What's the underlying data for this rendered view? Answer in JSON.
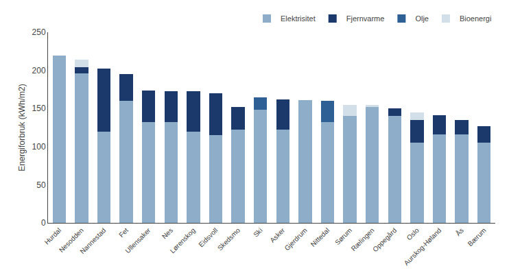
{
  "chart_data": {
    "type": "bar",
    "stacked": true,
    "categories": [
      "Hurdal",
      "Nesodden",
      "Nannestad",
      "Fet",
      "Ullensaker",
      "Nes",
      "Lørenskog",
      "Eidsvoll",
      "Skedsmo",
      "Ski",
      "Asker",
      "Gjerdrum",
      "Nittedal",
      "Sørum",
      "Rælingen",
      "Oppegård",
      "Oslo",
      "Aurskog-Høland",
      "Ås",
      "Bærum"
    ],
    "series": [
      {
        "name": "Elektrisitet",
        "color": "#8eadc8",
        "values": [
          219,
          196,
          120,
          160,
          132,
          132,
          120,
          115,
          122,
          148,
          122,
          161,
          132,
          140,
          152,
          140,
          105,
          116,
          116,
          105
        ]
      },
      {
        "name": "Fjernvarme",
        "color": "#1b3a6b",
        "values": [
          0,
          8,
          82,
          35,
          42,
          41,
          53,
          55,
          30,
          0,
          40,
          0,
          0,
          0,
          0,
          10,
          30,
          25,
          19,
          22
        ]
      },
      {
        "name": "Olje",
        "color": "#2e6096",
        "values": [
          0,
          0,
          0,
          0,
          0,
          0,
          0,
          0,
          0,
          17,
          0,
          0,
          28,
          0,
          0,
          0,
          0,
          0,
          0,
          0
        ]
      },
      {
        "name": "Bioenergi",
        "color": "#d3dfe8",
        "values": [
          0,
          10,
          0,
          0,
          0,
          0,
          0,
          0,
          0,
          0,
          0,
          0,
          0,
          15,
          3,
          0,
          10,
          0,
          0,
          0
        ]
      }
    ],
    "ylabel": "Energiforbruk (kWh/m2)",
    "ylim": [
      0,
      250
    ],
    "yticks": [
      0,
      50,
      100,
      150,
      200,
      250
    ],
    "grid": false,
    "legend": "upper right"
  }
}
